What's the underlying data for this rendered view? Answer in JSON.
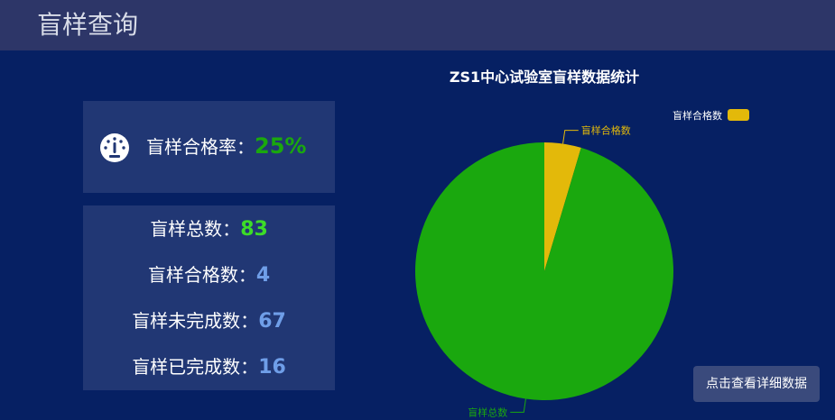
{
  "header": {
    "title": "盲样查询"
  },
  "rate": {
    "label": "盲样合格率：",
    "value": "25%",
    "icon": "gauge-icon"
  },
  "stats": [
    {
      "label": "盲样总数：",
      "value": "83"
    },
    {
      "label": "盲样合格数：",
      "value": "4"
    },
    {
      "label": "盲样未完成数：",
      "value": "67"
    },
    {
      "label": "盲样已完成数：",
      "value": "16"
    }
  ],
  "chart_data": {
    "type": "pie",
    "title": "ZS1中心试验室盲样数据统计",
    "series": [
      {
        "name": "盲样合格数",
        "value": 4,
        "color": "#e3b90a"
      },
      {
        "name": "盲样总数",
        "value": 83,
        "color": "#1aa80e"
      }
    ],
    "legend": {
      "position": "top-right",
      "entries": [
        "盲样合格数"
      ]
    }
  },
  "actions": {
    "detail_button": "点击查看详细数据"
  }
}
